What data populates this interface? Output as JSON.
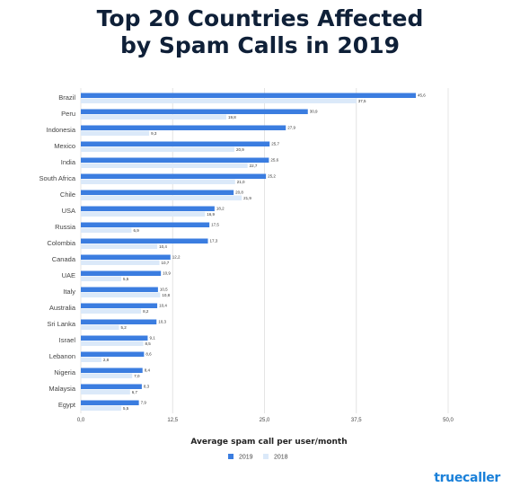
{
  "title_lines": [
    "Top 20 Countries Affected",
    "by Spam Calls in 2019"
  ],
  "brand": "truecaller",
  "colors": {
    "series_2019": "#3b7de0",
    "series_2018": "#dbe9f9",
    "title": "#0f2038",
    "axis_text": "#444444",
    "grid": "#e4e4e4"
  },
  "chart_data": {
    "type": "bar",
    "orientation": "horizontal",
    "categories": [
      "Brazil",
      "Peru",
      "Indonesia",
      "Mexico",
      "India",
      "South Africa",
      "Chile",
      "USA",
      "Russia",
      "Colombia",
      "Canada",
      "UAE",
      "Italy",
      "Australia",
      "Sri Lanka",
      "Israel",
      "Lebanon",
      "Nigeria",
      "Malaysia",
      "Egypt"
    ],
    "series": [
      {
        "name": "2019",
        "values": [
          45.6,
          30.9,
          27.9,
          25.7,
          25.6,
          25.2,
          20.8,
          18.2,
          17.5,
          17.3,
          12.2,
          10.9,
          10.5,
          10.4,
          10.3,
          9.1,
          8.6,
          8.4,
          8.3,
          7.9
        ]
      },
      {
        "name": "2018",
        "values": [
          37.5,
          19.8,
          9.3,
          20.9,
          22.7,
          21.0,
          21.9,
          16.9,
          6.9,
          10.4,
          10.7,
          5.5,
          10.8,
          8.2,
          5.2,
          8.5,
          2.8,
          7.0,
          6.7,
          5.5
        ]
      }
    ],
    "data_labels": {
      "2019": [
        "45,6",
        "30,9",
        "27,9",
        "25,7",
        "25,6",
        "25,2",
        "20,8",
        "18,2",
        "17,5",
        "17,3",
        "12,2",
        "10,9",
        "10,5",
        "10,4",
        "10,3",
        "9,1",
        "8,6",
        "8,4",
        "8,3",
        "7,9"
      ],
      "2018": [
        "37,5",
        "19,8",
        "9,3",
        "20,9",
        "22,7",
        "21,0",
        "21,9",
        "16,9",
        "6,9",
        "10,4",
        "10,7",
        "5,5",
        "10,8",
        "8,2",
        "5,2",
        "8,5",
        "2,8",
        "7,0",
        "6,7",
        "5,5"
      ]
    },
    "xlabel": "Average spam call per user/month",
    "ylabel": "",
    "xlim": [
      0,
      50
    ],
    "xticks": [
      0,
      12.5,
      25,
      37.5,
      50
    ],
    "xtick_labels": [
      "0,0",
      "12,5",
      "25,0",
      "37,5",
      "50,0"
    ],
    "grid": true,
    "legend_position": "bottom"
  }
}
